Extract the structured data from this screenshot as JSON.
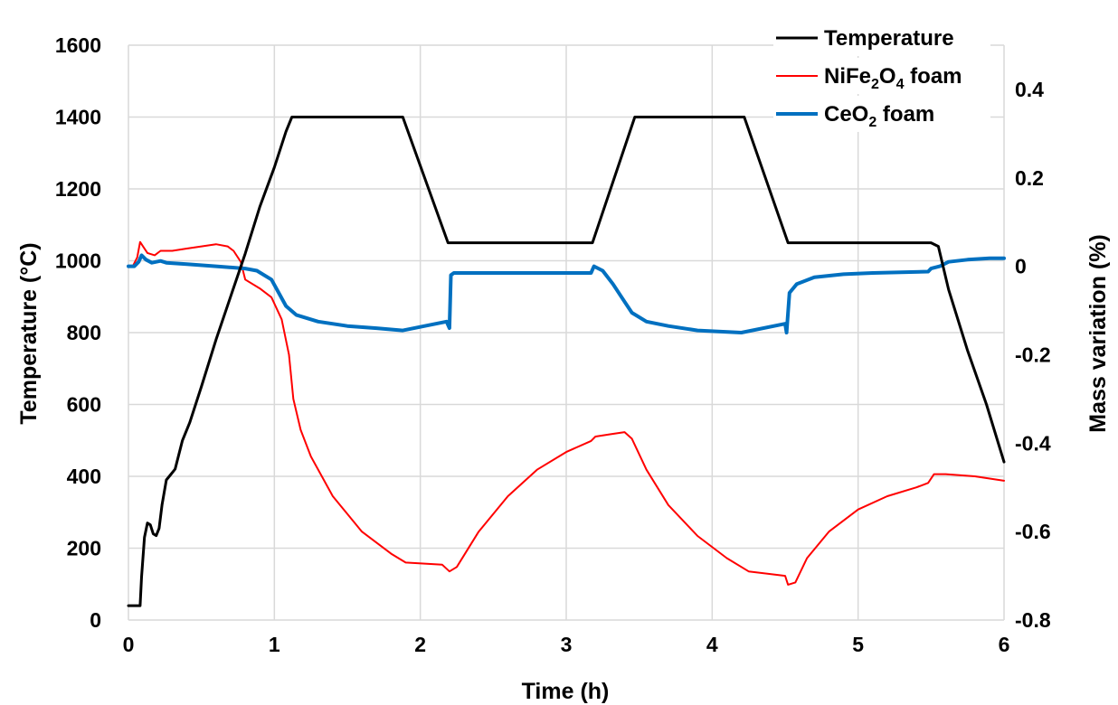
{
  "chart_data": {
    "type": "line",
    "title": "",
    "xlabel": "Time (h)",
    "ylabel_left": "Temperature (°C)",
    "ylabel_right": "Mass variation (%)",
    "xlim": [
      0,
      6
    ],
    "ylim_left": [
      0,
      1600
    ],
    "ylim_right": [
      -0.8,
      0.5
    ],
    "x_ticks": [
      "0",
      "1",
      "2",
      "3",
      "4",
      "5",
      "6"
    ],
    "y_left_ticks": [
      "0",
      "200",
      "400",
      "600",
      "800",
      "1000",
      "1200",
      "1400",
      "1600"
    ],
    "y_right_ticks": [
      "-0.8",
      "-0.6",
      "-0.4",
      "-0.2",
      "0",
      "0.2",
      "0.4"
    ],
    "grid": true,
    "legend_position": "top-right",
    "series": [
      {
        "name": "Temperature",
        "legend_parts": [
          {
            "t": "Temperature"
          }
        ],
        "axis": "left",
        "color": "#000000",
        "points": [
          [
            0,
            40
          ],
          [
            0.08,
            40
          ],
          [
            0.09,
            120
          ],
          [
            0.11,
            230
          ],
          [
            0.13,
            270
          ],
          [
            0.15,
            265
          ],
          [
            0.17,
            240
          ],
          [
            0.19,
            235
          ],
          [
            0.21,
            255
          ],
          [
            0.23,
            320
          ],
          [
            0.26,
            390
          ],
          [
            0.29,
            405
          ],
          [
            0.32,
            420
          ],
          [
            0.37,
            500
          ],
          [
            0.42,
            550
          ],
          [
            0.5,
            650
          ],
          [
            0.6,
            780
          ],
          [
            0.7,
            900
          ],
          [
            0.8,
            1020
          ],
          [
            0.9,
            1150
          ],
          [
            1.0,
            1260
          ],
          [
            1.08,
            1360
          ],
          [
            1.12,
            1400
          ],
          [
            1.2,
            1400
          ],
          [
            1.88,
            1400
          ],
          [
            2.19,
            1050
          ],
          [
            2.25,
            1050
          ],
          [
            3.18,
            1050
          ],
          [
            3.47,
            1400
          ],
          [
            3.55,
            1400
          ],
          [
            4.22,
            1400
          ],
          [
            4.52,
            1050
          ],
          [
            4.58,
            1050
          ],
          [
            5.5,
            1050
          ],
          [
            5.55,
            1040
          ],
          [
            5.62,
            920
          ],
          [
            5.75,
            750
          ],
          [
            5.88,
            600
          ],
          [
            6.0,
            440
          ]
        ]
      },
      {
        "name": "NiFe2O4 foam",
        "legend_parts": [
          {
            "t": "NiFe"
          },
          {
            "t": "2",
            "sub": true
          },
          {
            "t": "O"
          },
          {
            "t": "4",
            "sub": true
          },
          {
            "t": " foam"
          }
        ],
        "axis": "right",
        "color": "#ff0000",
        "points": [
          [
            0,
            0
          ],
          [
            0.03,
            0
          ],
          [
            0.06,
            0.02
          ],
          [
            0.08,
            0.055
          ],
          [
            0.1,
            0.045
          ],
          [
            0.13,
            0.03
          ],
          [
            0.18,
            0.025
          ],
          [
            0.22,
            0.035
          ],
          [
            0.3,
            0.035
          ],
          [
            0.4,
            0.04
          ],
          [
            0.5,
            0.045
          ],
          [
            0.6,
            0.05
          ],
          [
            0.68,
            0.045
          ],
          [
            0.72,
            0.035
          ],
          [
            0.77,
            0.01
          ],
          [
            0.8,
            -0.03
          ],
          [
            0.9,
            -0.05
          ],
          [
            0.98,
            -0.07
          ],
          [
            1.05,
            -0.12
          ],
          [
            1.1,
            -0.2
          ],
          [
            1.13,
            -0.3
          ],
          [
            1.18,
            -0.37
          ],
          [
            1.25,
            -0.43
          ],
          [
            1.4,
            -0.52
          ],
          [
            1.6,
            -0.6
          ],
          [
            1.8,
            -0.65
          ],
          [
            1.9,
            -0.67
          ],
          [
            2.15,
            -0.675
          ],
          [
            2.2,
            -0.69
          ],
          [
            2.25,
            -0.68
          ],
          [
            2.4,
            -0.6
          ],
          [
            2.6,
            -0.52
          ],
          [
            2.8,
            -0.46
          ],
          [
            3.0,
            -0.42
          ],
          [
            3.17,
            -0.395
          ],
          [
            3.2,
            -0.385
          ],
          [
            3.3,
            -0.38
          ],
          [
            3.4,
            -0.375
          ],
          [
            3.45,
            -0.39
          ],
          [
            3.55,
            -0.46
          ],
          [
            3.7,
            -0.54
          ],
          [
            3.9,
            -0.61
          ],
          [
            4.1,
            -0.66
          ],
          [
            4.25,
            -0.69
          ],
          [
            4.5,
            -0.7
          ],
          [
            4.52,
            -0.72
          ],
          [
            4.57,
            -0.715
          ],
          [
            4.65,
            -0.66
          ],
          [
            4.8,
            -0.6
          ],
          [
            5.0,
            -0.55
          ],
          [
            5.2,
            -0.52
          ],
          [
            5.4,
            -0.5
          ],
          [
            5.48,
            -0.49
          ],
          [
            5.52,
            -0.47
          ],
          [
            5.6,
            -0.47
          ],
          [
            5.8,
            -0.475
          ],
          [
            6.0,
            -0.485
          ]
        ]
      },
      {
        "name": "CeO2 foam",
        "legend_parts": [
          {
            "t": "CeO"
          },
          {
            "t": "2",
            "sub": true
          },
          {
            "t": " foam"
          }
        ],
        "axis": "right",
        "color": "#0070c0",
        "points": [
          [
            0,
            0
          ],
          [
            0.04,
            0
          ],
          [
            0.07,
            0.01
          ],
          [
            0.09,
            0.025
          ],
          [
            0.12,
            0.015
          ],
          [
            0.16,
            0.008
          ],
          [
            0.22,
            0.012
          ],
          [
            0.26,
            0.008
          ],
          [
            0.4,
            0.005
          ],
          [
            0.6,
            0.0
          ],
          [
            0.8,
            -0.005
          ],
          [
            0.88,
            -0.01
          ],
          [
            0.98,
            -0.03
          ],
          [
            1.08,
            -0.09
          ],
          [
            1.15,
            -0.11
          ],
          [
            1.3,
            -0.125
          ],
          [
            1.5,
            -0.135
          ],
          [
            1.7,
            -0.14
          ],
          [
            1.88,
            -0.145
          ],
          [
            2.18,
            -0.125
          ],
          [
            2.2,
            -0.14
          ],
          [
            2.21,
            -0.02
          ],
          [
            2.23,
            -0.015
          ],
          [
            3.17,
            -0.015
          ],
          [
            3.19,
            0.0
          ],
          [
            3.25,
            -0.01
          ],
          [
            3.32,
            -0.04
          ],
          [
            3.4,
            -0.08
          ],
          [
            3.45,
            -0.105
          ],
          [
            3.55,
            -0.125
          ],
          [
            3.7,
            -0.135
          ],
          [
            3.9,
            -0.145
          ],
          [
            4.2,
            -0.15
          ],
          [
            4.5,
            -0.13
          ],
          [
            4.51,
            -0.15
          ],
          [
            4.53,
            -0.06
          ],
          [
            4.58,
            -0.04
          ],
          [
            4.7,
            -0.025
          ],
          [
            4.9,
            -0.018
          ],
          [
            5.1,
            -0.015
          ],
          [
            5.48,
            -0.012
          ],
          [
            5.5,
            -0.005
          ],
          [
            5.56,
            0.0
          ],
          [
            5.62,
            0.01
          ],
          [
            5.75,
            0.015
          ],
          [
            5.9,
            0.018
          ],
          [
            6.0,
            0.018
          ]
        ]
      }
    ]
  }
}
